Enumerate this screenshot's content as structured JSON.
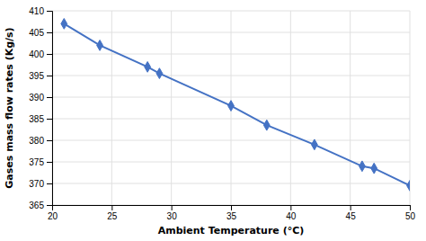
{
  "chart_data": {
    "type": "line",
    "x": [
      21,
      24,
      28,
      29,
      35,
      38,
      42,
      46,
      47,
      50
    ],
    "values": [
      407,
      402,
      397,
      395.5,
      388,
      383.5,
      379,
      374,
      373.5,
      369.5
    ],
    "color": "#4472C4",
    "marker": "diamond",
    "xlabel": "Ambient Temperature (°C)",
    "ylabel": "Gases mass flow rates (Kg/s)",
    "xlim": [
      20,
      50
    ],
    "ylim": [
      365,
      410
    ],
    "xticks": [
      20,
      25,
      30,
      35,
      40,
      45,
      50
    ],
    "yticks": [
      365,
      370,
      375,
      380,
      385,
      390,
      395,
      400,
      405,
      410
    ],
    "grid": true
  }
}
